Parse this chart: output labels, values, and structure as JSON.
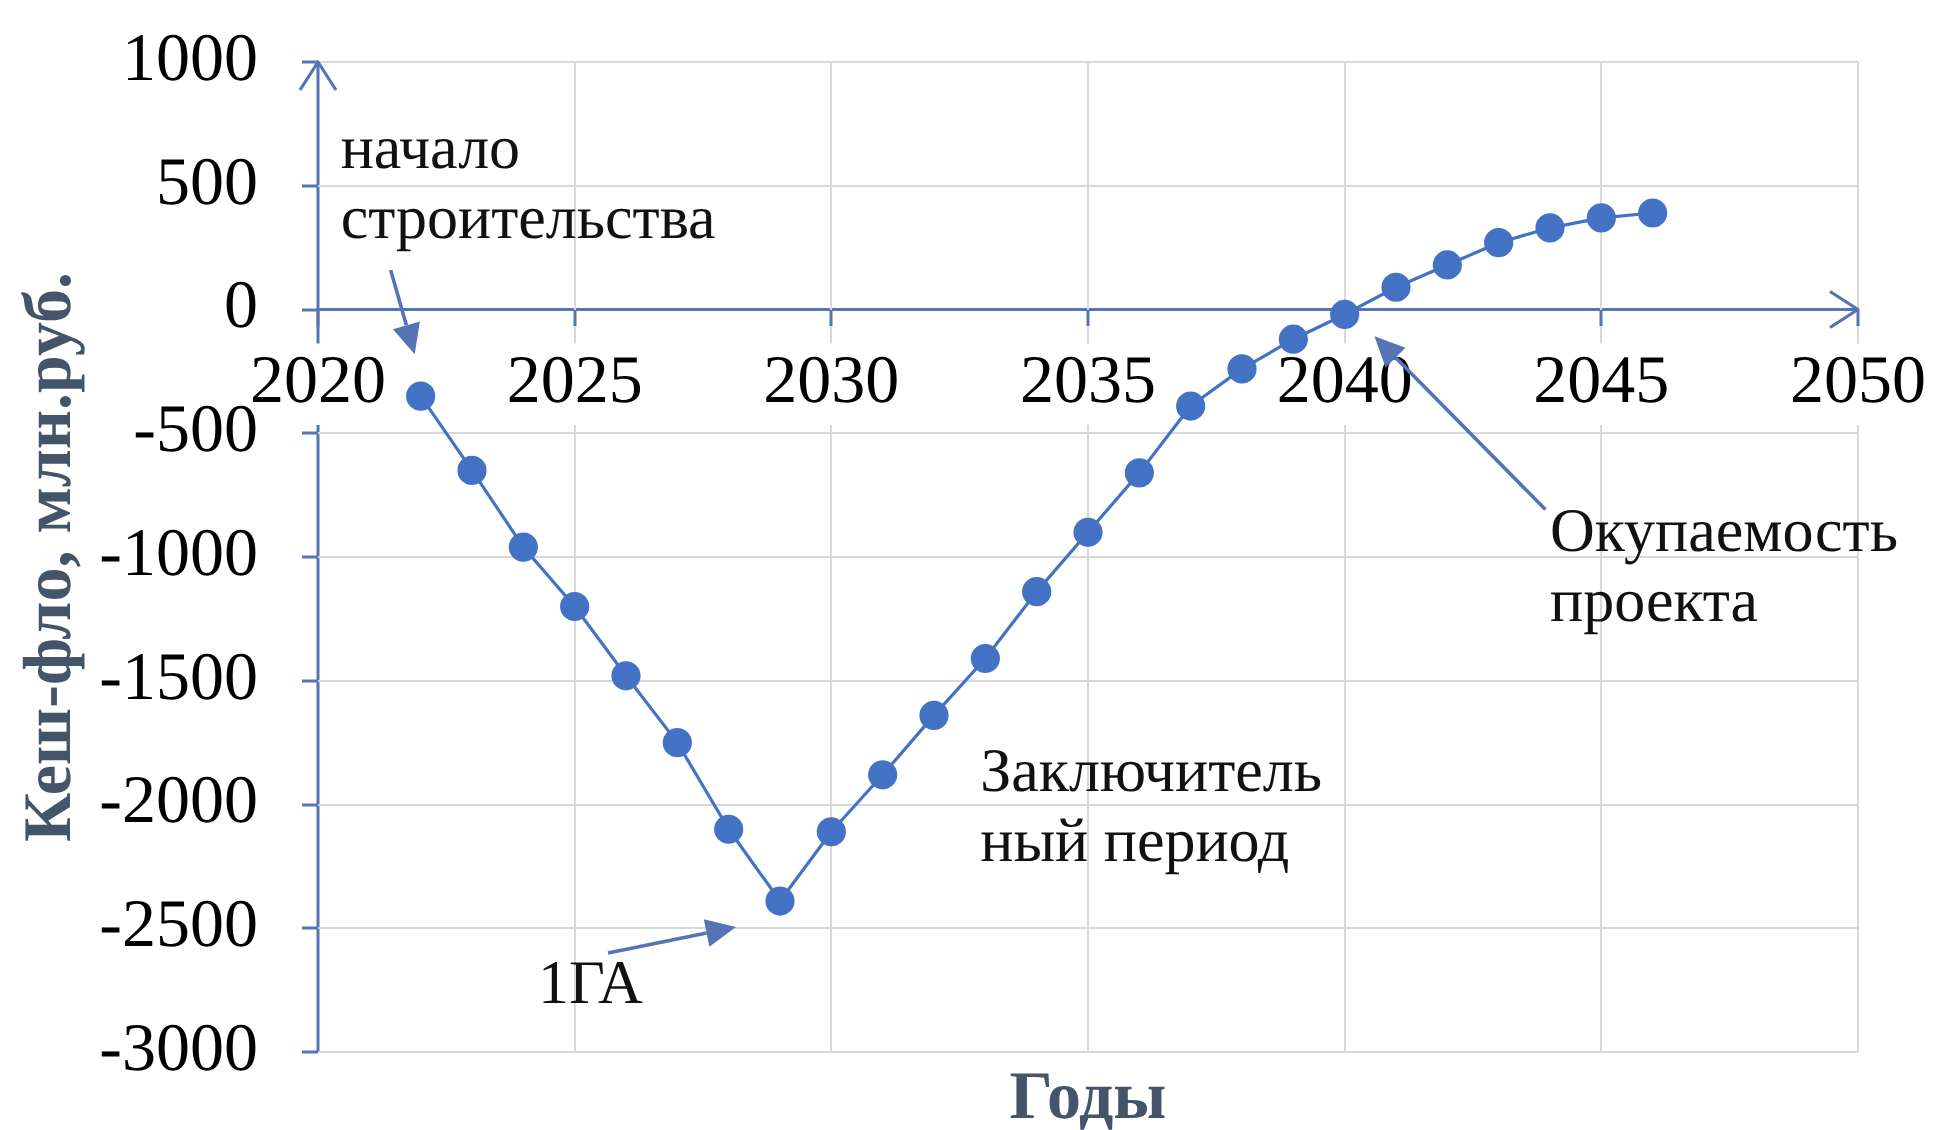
{
  "chart_data": {
    "type": "line",
    "xlabel": "Годы",
    "ylabel": "Кеш-фло, млн.руб.",
    "x": [
      2022,
      2023,
      2024,
      2025,
      2026,
      2027,
      2028,
      2029,
      2030,
      2031,
      2032,
      2033,
      2034,
      2035,
      2036,
      2037,
      2038,
      2039,
      2040,
      2041,
      2042,
      2043,
      2044,
      2045,
      2046
    ],
    "series": [
      {
        "color": "#4472c4",
        "values": [
          -350,
          -650,
          -960,
          -1200,
          -1480,
          -1750,
          -2100,
          -2390,
          -2110,
          -1880,
          -1640,
          -1410,
          -1140,
          -900,
          -660,
          -390,
          -240,
          -120,
          -20,
          90,
          180,
          270,
          330,
          370,
          390
        ]
      }
    ],
    "xlim": [
      2020,
      2050
    ],
    "xticks": [
      2020,
      2025,
      2030,
      2035,
      2040,
      2045,
      2050
    ],
    "ylim": [
      -3000,
      1000
    ],
    "yticks": [
      -3000,
      -2500,
      -2000,
      -1500,
      -1000,
      -500,
      0,
      500,
      1000
    ],
    "grid": true,
    "marker": "circle",
    "line_style": "solid",
    "annotations": [
      {
        "text": "начало\nстроительства",
        "x": 2022,
        "y": -350
      },
      {
        "text": "1ГА",
        "x": 2029,
        "y": -2390
      },
      "Заключитель\nный период",
      "Окупаемость\nпроекта"
    ]
  }
}
